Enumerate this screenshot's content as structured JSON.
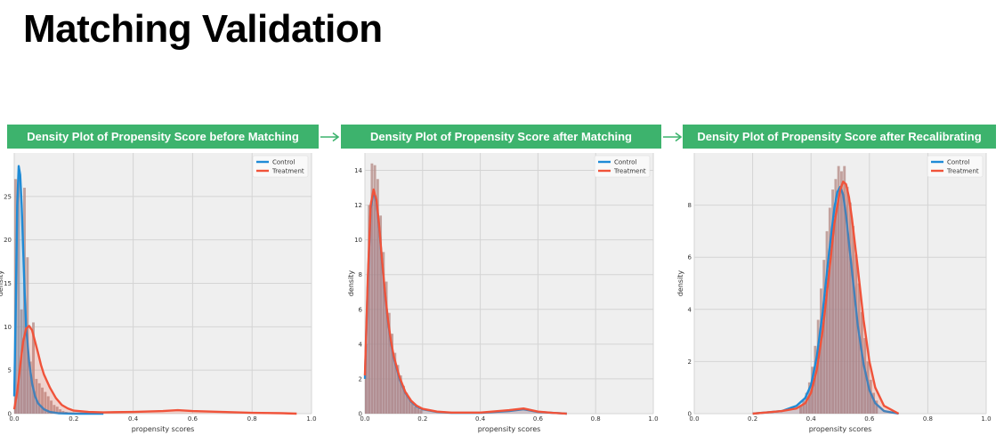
{
  "title": "Matching Validation",
  "colors": {
    "banner": "#3db36d",
    "control": "#1f8bd6",
    "treatment": "#f0533a",
    "histogram": "#b68f8a",
    "plot_bg": "#efefef",
    "grid": "#d4d4d4"
  },
  "chart_data": [
    {
      "type": "area",
      "title": "Density Plot of Propensity Score before Matching",
      "xlabel": "propensity scores",
      "ylabel": "density",
      "xlim": [
        0,
        1.0
      ],
      "ylim": [
        0,
        30
      ],
      "xticks": [
        0.0,
        0.2,
        0.4,
        0.6,
        0.8,
        1.0
      ],
      "xtick_labels": [
        "0.0",
        "0.2",
        "0.4",
        "0.6",
        "0.8",
        "1.0"
      ],
      "yticks": [
        0,
        5,
        10,
        15,
        20,
        25
      ],
      "ytick_labels": [
        "0",
        "5",
        "10",
        "15",
        "20",
        "25"
      ],
      "grid": true,
      "legend": "top-right",
      "series": [
        {
          "name": "Control",
          "color_key": "control",
          "x": [
            0.0,
            0.005,
            0.01,
            0.015,
            0.02,
            0.025,
            0.03,
            0.035,
            0.04,
            0.05,
            0.06,
            0.07,
            0.08,
            0.1,
            0.12,
            0.15,
            0.2,
            0.25,
            0.3
          ],
          "y": [
            2,
            12,
            24,
            28.5,
            27.5,
            24,
            19,
            14,
            10,
            6,
            3.5,
            2,
            1.2,
            0.5,
            0.2,
            0.05,
            0,
            0,
            0
          ]
        },
        {
          "name": "Treatment",
          "color_key": "treatment",
          "x": [
            0.0,
            0.01,
            0.02,
            0.03,
            0.04,
            0.05,
            0.06,
            0.07,
            0.08,
            0.09,
            0.1,
            0.12,
            0.14,
            0.16,
            0.18,
            0.2,
            0.25,
            0.3,
            0.4,
            0.5,
            0.55,
            0.6,
            0.7,
            0.8,
            0.9,
            0.95
          ],
          "y": [
            0.5,
            2.5,
            5.5,
            8.3,
            9.8,
            10.1,
            9.6,
            8.3,
            7.0,
            5.6,
            4.5,
            3.0,
            1.8,
            1.0,
            0.6,
            0.35,
            0.2,
            0.15,
            0.2,
            0.3,
            0.4,
            0.3,
            0.2,
            0.1,
            0.05,
            0.0
          ]
        }
      ],
      "histogram": {
        "bin_start": 0.0,
        "bin_width": 0.01,
        "values": [
          27,
          27,
          12,
          26,
          18,
          6,
          10.5,
          4,
          3.5,
          3,
          2.5,
          2,
          1.5,
          1,
          0.8,
          0.5,
          0.3,
          0.2,
          0.1,
          0.05
        ]
      }
    },
    {
      "type": "area",
      "title": "Density Plot of Propensity Score after Matching",
      "xlabel": "propensity scores",
      "ylabel": "density",
      "xlim": [
        0,
        1.0
      ],
      "ylim": [
        0,
        15
      ],
      "xticks": [
        0.0,
        0.2,
        0.4,
        0.6,
        0.8,
        1.0
      ],
      "xtick_labels": [
        "0.0",
        "0.2",
        "0.4",
        "0.6",
        "0.8",
        "1.0"
      ],
      "yticks": [
        0,
        2,
        4,
        6,
        8,
        10,
        12,
        14
      ],
      "ytick_labels": [
        "0",
        "2",
        "4",
        "6",
        "8",
        "10",
        "12",
        "14"
      ],
      "grid": true,
      "legend": "top-right",
      "series": [
        {
          "name": "Control",
          "color_key": "control",
          "x": [
            0.0,
            0.01,
            0.02,
            0.03,
            0.04,
            0.05,
            0.06,
            0.07,
            0.08,
            0.09,
            0.1,
            0.12,
            0.14,
            0.16,
            0.18,
            0.2,
            0.25,
            0.3,
            0.4,
            0.5,
            0.55,
            0.6,
            0.65,
            0.7
          ],
          "y": [
            2,
            7.5,
            11.8,
            12.8,
            12.2,
            10.6,
            8.6,
            6.8,
            5.3,
            4.1,
            3.2,
            2.0,
            1.2,
            0.7,
            0.4,
            0.25,
            0.1,
            0.05,
            0.05,
            0.15,
            0.25,
            0.1,
            0.05,
            0.0
          ]
        },
        {
          "name": "Treatment",
          "color_key": "treatment",
          "x": [
            0.0,
            0.01,
            0.02,
            0.03,
            0.04,
            0.05,
            0.06,
            0.07,
            0.08,
            0.09,
            0.1,
            0.12,
            0.14,
            0.16,
            0.18,
            0.2,
            0.25,
            0.3,
            0.4,
            0.5,
            0.55,
            0.6,
            0.65,
            0.7
          ],
          "y": [
            2.2,
            7.8,
            12.0,
            12.9,
            12.3,
            10.7,
            8.7,
            6.9,
            5.4,
            4.2,
            3.3,
            2.1,
            1.25,
            0.75,
            0.45,
            0.28,
            0.12,
            0.06,
            0.06,
            0.2,
            0.3,
            0.12,
            0.05,
            0.0
          ]
        }
      ],
      "histogram": {
        "bin_start": 0.0,
        "bin_width": 0.01,
        "values": [
          4,
          12,
          14.4,
          14.3,
          13.5,
          11.4,
          9.3,
          7.6,
          5.8,
          4.6,
          3.5,
          2.8,
          2.2,
          1.6,
          1.2,
          0.9,
          0.6,
          0.4,
          0.3,
          0.2
        ]
      }
    },
    {
      "type": "area",
      "title": "Density Plot of Propensity Score after Recalibrating",
      "xlabel": "propensity scores",
      "ylabel": "density",
      "xlim": [
        0,
        1.0
      ],
      "ylim": [
        0,
        10
      ],
      "xticks": [
        0.0,
        0.2,
        0.4,
        0.6,
        0.8,
        1.0
      ],
      "xtick_labels": [
        "0.0",
        "0.2",
        "0.4",
        "0.6",
        "0.8",
        "1.0"
      ],
      "yticks": [
        0,
        2,
        4,
        6,
        8
      ],
      "ytick_labels": [
        "0",
        "2",
        "4",
        "6",
        "8"
      ],
      "grid": true,
      "legend": "top-right",
      "series": [
        {
          "name": "Control",
          "color_key": "control",
          "x": [
            0.2,
            0.25,
            0.3,
            0.35,
            0.38,
            0.4,
            0.42,
            0.44,
            0.46,
            0.48,
            0.49,
            0.5,
            0.51,
            0.52,
            0.54,
            0.56,
            0.58,
            0.6,
            0.62,
            0.65,
            0.7
          ],
          "y": [
            0.0,
            0.05,
            0.1,
            0.3,
            0.6,
            1.1,
            2.2,
            3.9,
            6.0,
            7.9,
            8.5,
            8.7,
            8.4,
            7.6,
            5.5,
            3.4,
            1.9,
            0.9,
            0.4,
            0.1,
            0.0
          ]
        },
        {
          "name": "Treatment",
          "color_key": "treatment",
          "x": [
            0.2,
            0.25,
            0.3,
            0.35,
            0.38,
            0.4,
            0.42,
            0.44,
            0.46,
            0.48,
            0.5,
            0.51,
            0.52,
            0.53,
            0.54,
            0.56,
            0.58,
            0.6,
            0.62,
            0.65,
            0.7
          ],
          "y": [
            0.0,
            0.05,
            0.1,
            0.2,
            0.4,
            0.8,
            1.7,
            3.2,
            5.2,
            7.3,
            8.6,
            8.9,
            8.8,
            8.3,
            7.5,
            5.6,
            3.6,
            2.0,
            1.0,
            0.3,
            0.0
          ]
        }
      ],
      "histogram": {
        "bin_start": 0.36,
        "bin_width": 0.01,
        "values": [
          0.3,
          0.5,
          0.8,
          1.2,
          1.8,
          2.6,
          3.6,
          4.8,
          5.9,
          7.0,
          7.9,
          8.6,
          9.0,
          9.5,
          9.3,
          9.5,
          8.7,
          8.1,
          7.2,
          6.1,
          5.0,
          3.9,
          2.9,
          2.0,
          1.3,
          0.8,
          0.5
        ]
      }
    }
  ]
}
